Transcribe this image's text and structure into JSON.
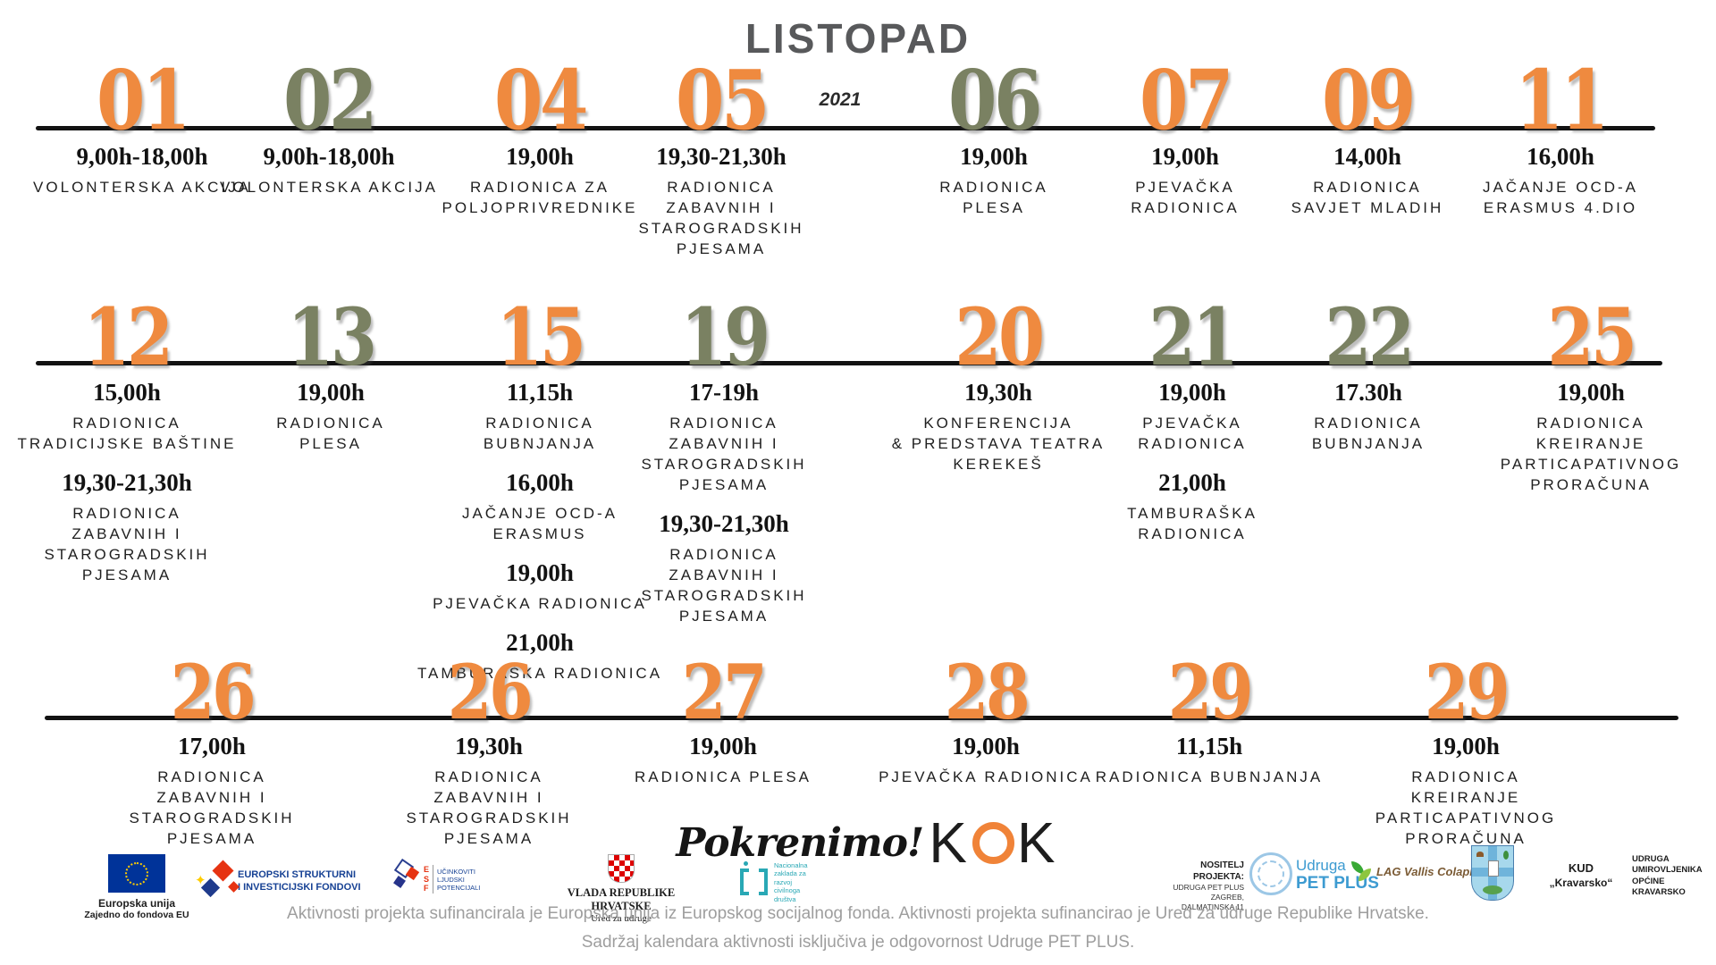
{
  "title": "LISTOPAD",
  "year": "2021",
  "palette": {
    "orange": "#EF8A3F",
    "green": "#7A8162",
    "line": "#121212",
    "title_gray": "#58595B",
    "text_dark": "#1F1F1F",
    "muted_gray": "#9E9E9E",
    "kok_orange": "#F08338",
    "eu_blue": "#003399",
    "esif_blue": "#164194",
    "petplus_blue": "#3D9BD1",
    "zaklada_teal": "#29A8B5"
  },
  "rows": [
    {
      "days": [
        {
          "num": "01",
          "color": "orange",
          "events": [
            {
              "time": "9,00h-18,00h",
              "lines": [
                "VOLONTERSKA AKCIJA"
              ]
            }
          ]
        },
        {
          "num": "02",
          "color": "green",
          "events": [
            {
              "time": "9,00h-18,00h",
              "lines": [
                "VOLONTERSKA AKCIJA"
              ]
            }
          ]
        },
        {
          "num": "04",
          "color": "orange",
          "events": [
            {
              "time": "19,00h",
              "lines": [
                "RADIONICA ZA",
                "POLJOPRIVREDNIKE"
              ]
            }
          ]
        },
        {
          "num": "05",
          "color": "orange",
          "events": [
            {
              "time": "19,30-21,30h",
              "lines": [
                "RADIONICA",
                "ZABAVNIH I",
                "STAROGRADSKIH",
                "PJESAMA"
              ]
            }
          ]
        },
        {
          "num": "06",
          "color": "green",
          "events": [
            {
              "time": "19,00h",
              "lines": [
                "RADIONICA",
                "PLESA"
              ]
            }
          ]
        },
        {
          "num": "07",
          "color": "orange",
          "events": [
            {
              "time": "19,00h",
              "lines": [
                "PJEVAČKA",
                "RADIONICA"
              ]
            }
          ]
        },
        {
          "num": "09",
          "color": "orange",
          "events": [
            {
              "time": "14,00h",
              "lines": [
                "RADIONICA",
                "SAVJET MLADIH"
              ]
            }
          ]
        },
        {
          "num": "11",
          "color": "orange",
          "events": [
            {
              "time": "16,00h",
              "lines": [
                "JAČANJE OCD-A",
                "ERASMUS 4.DIO"
              ]
            }
          ]
        }
      ]
    },
    {
      "days": [
        {
          "num": "12",
          "color": "orange",
          "events": [
            {
              "time": "15,00h",
              "lines": [
                "RADIONICA",
                "TRADICIJSKE BAŠTINE"
              ]
            },
            {
              "time": "19,30-21,30h",
              "lines": [
                "RADIONICA",
                "ZABAVNIH I",
                "STAROGRADSKIH",
                "PJESAMA"
              ]
            }
          ]
        },
        {
          "num": "13",
          "color": "green",
          "events": [
            {
              "time": "19,00h",
              "lines": [
                "RADIONICA",
                "PLESA"
              ]
            }
          ]
        },
        {
          "num": "15",
          "color": "orange",
          "events": [
            {
              "time": "11,15h",
              "lines": [
                "RADIONICA",
                "BUBNJANJA"
              ]
            },
            {
              "time": "16,00h",
              "lines": [
                "JAČANJE OCD-A",
                "ERASMUS"
              ]
            },
            {
              "time": "19,00h",
              "lines": [
                "PJEVAČKA RADIONICA"
              ]
            },
            {
              "time": "21,00h",
              "lines": [
                "TAMBURAŠKA RADIONICA"
              ]
            }
          ]
        },
        {
          "num": "19",
          "color": "green",
          "events": [
            {
              "time": "17-19h",
              "lines": [
                "RADIONICA",
                "ZABAVNIH I",
                "STAROGRADSKIH",
                "PJESAMA"
              ]
            },
            {
              "time": "19,30-21,30h",
              "lines": [
                "RADIONICA",
                "ZABAVNIH I",
                "STAROGRADSKIH",
                "PJESAMA"
              ]
            }
          ]
        },
        {
          "num": "20",
          "color": "orange",
          "events": [
            {
              "time": "19,30h",
              "lines": [
                "KONFERENCIJA",
                "& PREDSTAVA TEATRA",
                "KEREKEŠ"
              ]
            }
          ]
        },
        {
          "num": "21",
          "color": "green",
          "events": [
            {
              "time": "19,00h",
              "lines": [
                "PJEVAČKA",
                "RADIONICA"
              ]
            },
            {
              "time": "21,00h",
              "lines": [
                "TAMBURAŠKA",
                "RADIONICA"
              ]
            }
          ]
        },
        {
          "num": "22",
          "color": "green",
          "events": [
            {
              "time": "17.30h",
              "lines": [
                "RADIONICA",
                "BUBNJANJA"
              ]
            }
          ]
        },
        {
          "num": "25",
          "color": "orange",
          "events": [
            {
              "time": "19,00h",
              "lines": [
                "RADIONICA",
                "KREIRANJE",
                "PARTICAPATIVNOG",
                "PRORAČUNA"
              ]
            }
          ]
        }
      ]
    },
    {
      "days": [
        {
          "num": "26",
          "color": "orange",
          "events": [
            {
              "time": "17,00h",
              "lines": [
                "RADIONICA",
                "ZABAVNIH I",
                "STAROGRADSKIH",
                "PJESAMA"
              ]
            }
          ]
        },
        {
          "num": "26",
          "color": "orange",
          "events": [
            {
              "time": "19,30h",
              "lines": [
                "RADIONICA",
                "ZABAVNIH I",
                "STAROGRADSKIH",
                "PJESAMA"
              ]
            }
          ]
        },
        {
          "num": "27",
          "color": "orange",
          "events": [
            {
              "time": "19,00h",
              "lines": [
                "RADIONICA PLESA"
              ]
            }
          ]
        },
        {
          "num": "28",
          "color": "orange",
          "events": [
            {
              "time": "19,00h",
              "lines": [
                "PJEVAČKA RADIONICA"
              ]
            }
          ]
        },
        {
          "num": "29",
          "color": "orange",
          "events": [
            {
              "time": "11,15h",
              "lines": [
                "RADIONICA BUBNJANJA"
              ]
            }
          ]
        },
        {
          "num": "29",
          "color": "orange",
          "events": [
            {
              "time": "19,00h",
              "lines": [
                "RADIONICA",
                "KREIRANJE",
                "PARTICAPATIVNOG",
                "PRORAČUNA"
              ]
            }
          ]
        }
      ]
    }
  ],
  "footer": {
    "pokrenimo": {
      "script": "Pokrenimo!",
      "k_left": "K",
      "k_right": "K"
    },
    "eu_flag": {
      "line1": "Europska unija",
      "line2": "Zajedno do fondova EU"
    },
    "esif": {
      "line1": "EUROPSKI STRUKTURNI",
      "line2": "I INVESTICIJSKI FONDOVI"
    },
    "esf": {
      "letters": [
        "E",
        "S",
        "F"
      ],
      "lines": [
        "UČINKOVITI",
        "LJUDSKI",
        "POTENCIJALI"
      ]
    },
    "vlada": {
      "line1": "VLADA REPUBLIKE HRVATSKE",
      "line2": "Ured za udruge"
    },
    "zaklada": {
      "lines": [
        "Nacionalna",
        "zaklada za",
        "razvoj",
        "civilnoga",
        "društva"
      ]
    },
    "nositelj": {
      "line1": "NOSITELJ PROJEKTA:",
      "line2": "UDRUGA PET PLUS",
      "line3": "ZAGREB, DALMATINSKA 11"
    },
    "petplus": {
      "line1": "Udruga",
      "line2": "PET PLUS"
    },
    "lag": {
      "label": "LAG Vallis Colapis"
    },
    "kud": {
      "line1": "KUD",
      "line2": "„Kravarsko“"
    },
    "umirovljenici": {
      "lines": [
        "UDRUGA",
        "UMIROVLJENIKA",
        "OPĆINE",
        "KRAVARSKO"
      ]
    },
    "disclaimer1": "Aktivnosti projekta sufinancirala je Europska unija iz Europskog socijalnog fonda.  Aktivnosti projekta sufinancirao je Ured za udruge Republike Hrvatske.",
    "disclaimer2": "Sadržaj kalendara aktivnosti isključiva je odgovornost Udruge PET PLUS."
  }
}
